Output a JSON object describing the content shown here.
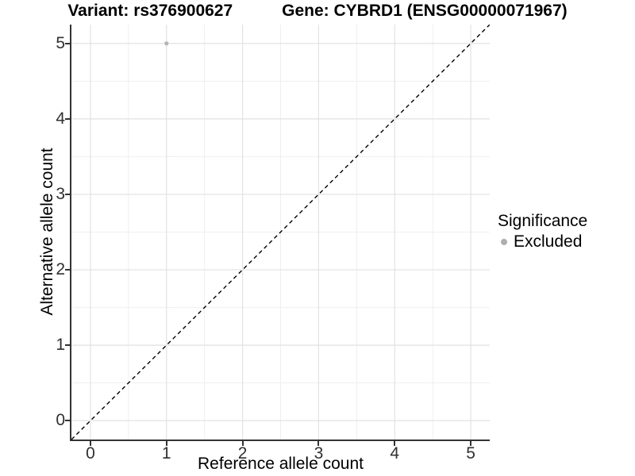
{
  "chart_data": {
    "type": "scatter",
    "title_left": "Variant: rs376900627",
    "title_right": "Gene: CYBRD1 (ENSG00000071967)",
    "xlabel": "Reference allele count",
    "ylabel": "Alternative allele count",
    "xlim": [
      -0.25,
      5.25
    ],
    "ylim": [
      -0.25,
      5.25
    ],
    "x_ticks": [
      0,
      1,
      2,
      3,
      4,
      5
    ],
    "y_ticks": [
      0,
      1,
      2,
      3,
      4,
      5
    ],
    "minor_step": 0.5,
    "grid": "major+minor",
    "series": [
      {
        "name": "Excluded",
        "points": [
          {
            "x": 1,
            "y": 5
          }
        ]
      }
    ],
    "reference_line": {
      "type": "identity",
      "slope": 1,
      "intercept": 0,
      "style": "dashed",
      "color": "#000000"
    },
    "legend": {
      "title": "Significance",
      "position": "right",
      "items": [
        {
          "label": "Excluded",
          "color": "#aeaeae"
        }
      ]
    },
    "colors": {
      "grid_major": "#e2e2e2",
      "grid_minor": "#efefef",
      "axis": "#333333",
      "tick_label": "#303030",
      "point": "#b5b5b5",
      "background": "#ffffff"
    }
  }
}
